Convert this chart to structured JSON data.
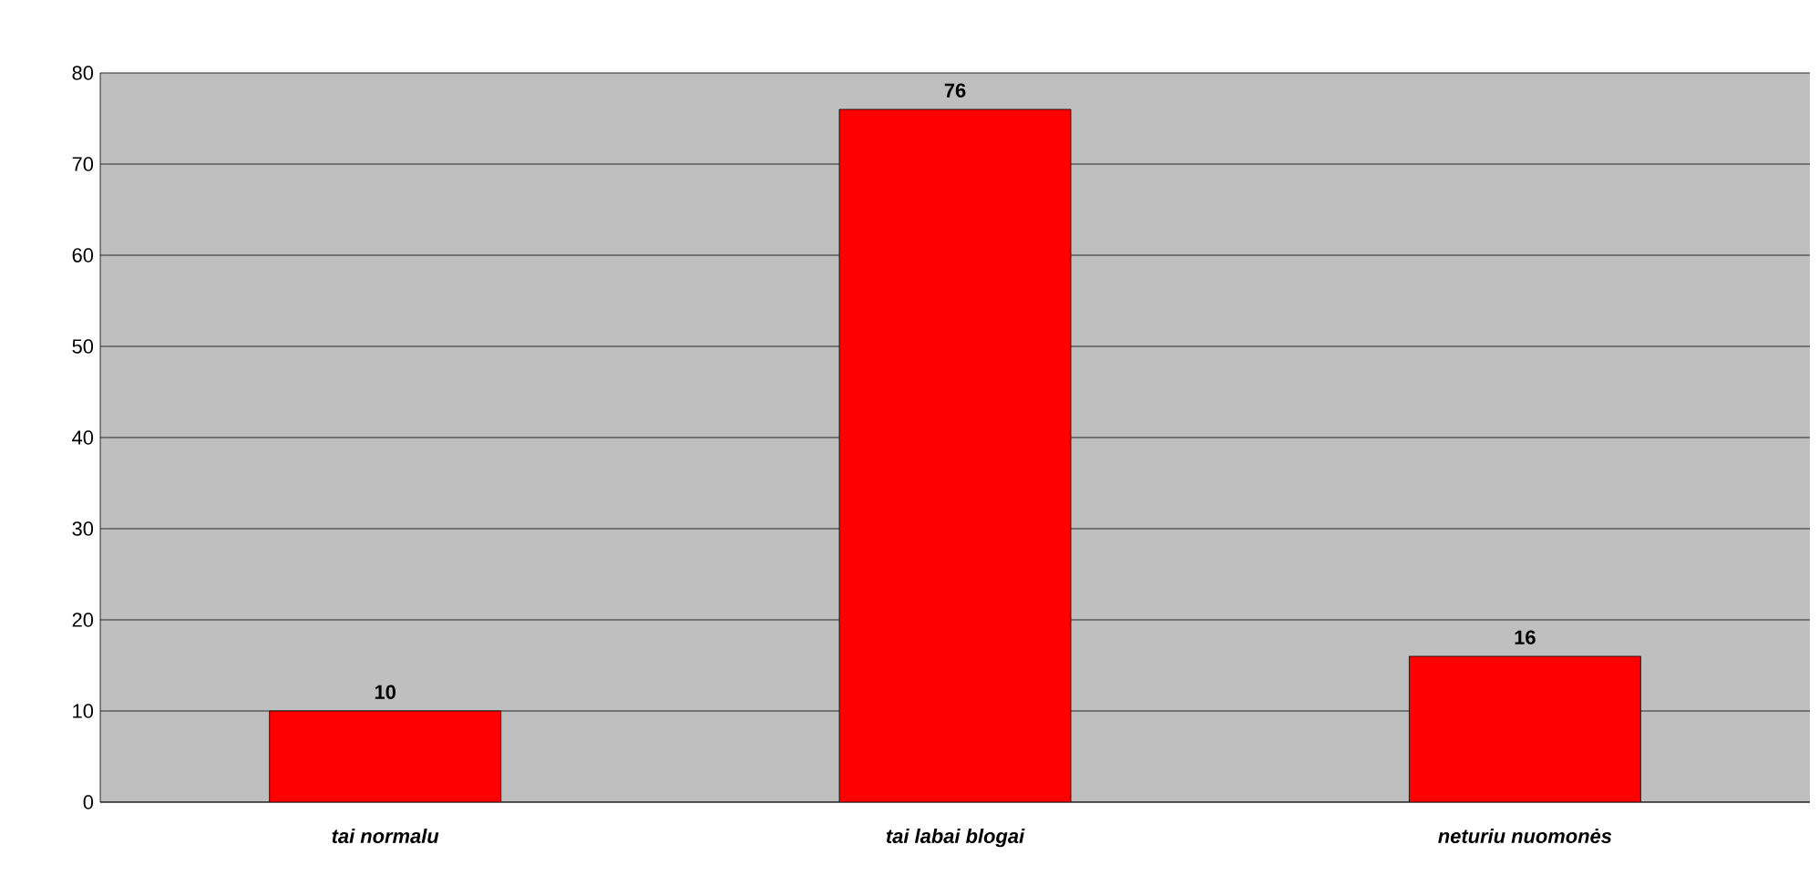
{
  "chart_data": {
    "type": "bar",
    "categories": [
      "tai normalu",
      "tai labai blogai",
      "neturiu nuomonės"
    ],
    "values": [
      10,
      76,
      16
    ],
    "color": "#ff0000",
    "ylim": [
      0,
      80
    ],
    "yticks": [
      0,
      10,
      20,
      30,
      40,
      50,
      60,
      70,
      80
    ],
    "grid": "y",
    "data_labels": true
  }
}
